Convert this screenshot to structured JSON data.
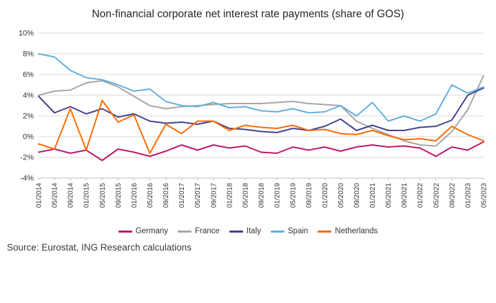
{
  "title": "Non-financial corporate net interest rate payments (share of GOS)",
  "source": "Source: Eurostat, ING Research calculations",
  "colors": {
    "germany": "#c0156b",
    "france": "#a6a6a6",
    "italy": "#42428e",
    "spain": "#62aede",
    "netherlands": "#ff6a00",
    "grid": "#d9d9d9",
    "axis": "#bfbfbf",
    "tick_text": "#333333"
  },
  "chart_data": {
    "type": "line",
    "title": "Non-financial corporate net interest rate payments (share of GOS)",
    "xlabel": "",
    "ylabel": "",
    "ylim": [
      -4,
      10
    ],
    "yticks": [
      -4,
      -2,
      0,
      2,
      4,
      6,
      8,
      10
    ],
    "ytick_format": "{v}%",
    "grid": true,
    "legend_position": "bottom",
    "categories": [
      "01/2014",
      "05/2014",
      "09/2014",
      "01/2015",
      "05/2015",
      "09/2015",
      "01/2016",
      "05/2016",
      "09/2016",
      "01/2017",
      "05/2017",
      "09/2017",
      "01/2018",
      "05/2018",
      "09/2018",
      "01/2019",
      "05/2019",
      "09/2019",
      "01/2020",
      "05/2020",
      "09/2020",
      "01/2021",
      "05/2021",
      "09/2021",
      "01/2022",
      "05/2022",
      "09/2022",
      "01/2023",
      "05/2023"
    ],
    "series": [
      {
        "name": "Germany",
        "color": "#c0156b",
        "values": [
          -1.5,
          -1.2,
          -1.6,
          -1.3,
          -2.3,
          -1.2,
          -1.5,
          -1.9,
          -1.4,
          -0.8,
          -1.3,
          -0.8,
          -1.1,
          -0.9,
          -1.5,
          -1.6,
          -1.0,
          -1.3,
          -1.0,
          -1.4,
          -1.0,
          -0.8,
          -1.0,
          -0.9,
          -1.1,
          -1.9,
          -1.0,
          -1.3,
          -0.5
        ]
      },
      {
        "name": "France",
        "color": "#a6a6a6",
        "values": [
          4.0,
          4.4,
          4.5,
          5.2,
          5.4,
          4.8,
          3.9,
          3.0,
          2.7,
          2.9,
          3.0,
          3.1,
          3.2,
          3.2,
          3.2,
          3.3,
          3.4,
          3.2,
          3.1,
          3.0,
          1.5,
          0.8,
          0.2,
          -0.4,
          -0.8,
          -0.9,
          0.5,
          2.6,
          5.9
        ]
      },
      {
        "name": "Italy",
        "color": "#42428e",
        "values": [
          3.9,
          2.3,
          2.9,
          2.2,
          2.7,
          1.9,
          2.2,
          1.5,
          1.3,
          1.4,
          1.2,
          1.5,
          0.8,
          0.7,
          0.5,
          0.4,
          0.8,
          0.6,
          1.0,
          1.7,
          0.6,
          1.1,
          0.6,
          0.6,
          0.9,
          1.0,
          1.6,
          4.0,
          4.7
        ]
      },
      {
        "name": "Spain",
        "color": "#62aede",
        "values": [
          8.0,
          7.7,
          6.4,
          5.7,
          5.5,
          5.0,
          4.4,
          4.6,
          3.4,
          3.0,
          2.9,
          3.3,
          2.8,
          2.9,
          2.5,
          2.4,
          2.7,
          2.3,
          2.4,
          3.0,
          2.0,
          3.3,
          1.5,
          2.0,
          1.5,
          2.2,
          5.0,
          4.2,
          4.8
        ]
      },
      {
        "name": "Netherlands",
        "color": "#ff6a00",
        "values": [
          -0.7,
          -1.2,
          2.7,
          -1.3,
          3.5,
          1.4,
          2.1,
          -1.6,
          1.2,
          0.3,
          1.5,
          1.5,
          0.6,
          1.1,
          0.9,
          0.8,
          1.1,
          0.6,
          0.7,
          0.3,
          0.2,
          0.6,
          0.1,
          -0.3,
          -0.2,
          -0.4,
          1.0,
          0.2,
          -0.4
        ]
      }
    ]
  }
}
